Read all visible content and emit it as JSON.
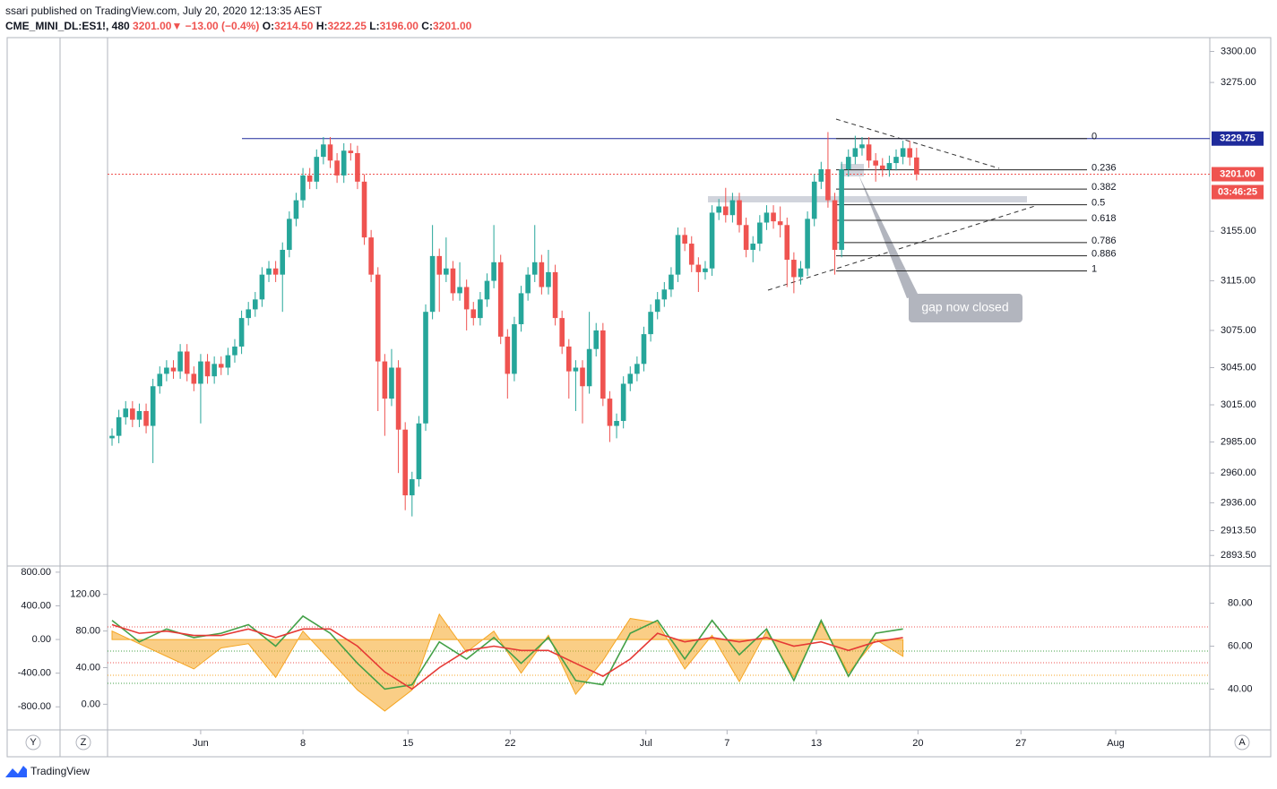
{
  "header": {
    "published": "ssari published on TradingView.com, July 20, 2020 12:13:35 AEST",
    "symbol": "CME_MINI_DL:ES1!, 480",
    "last": "3201.00",
    "arrow": "▼",
    "change": "−13.00 (−0.4%)",
    "o_label": "O:",
    "o_value": "3214.50",
    "h_label": "H:",
    "h_value": "3222.25",
    "l_label": "L:",
    "l_value": "3196.00",
    "c_label": "C:",
    "c_value": "3201.00"
  },
  "chart_data": [
    {
      "type": "candlestick",
      "up_color": "#26a69a",
      "down_color": "#ef5350",
      "xlim": [
        -0.66,
        161
      ],
      "ylim": [
        2885,
        3309
      ],
      "xticks": [
        {
          "value": 13,
          "label": "Jun"
        },
        {
          "value": 28,
          "label": "8"
        },
        {
          "value": 43.4,
          "label": "15"
        },
        {
          "value": 58.4,
          "label": "22"
        },
        {
          "value": 78.3,
          "label": "Jul"
        },
        {
          "value": 90.2,
          "label": "7"
        },
        {
          "value": 103.3,
          "label": "13"
        },
        {
          "value": 118.2,
          "label": "20"
        },
        {
          "value": 133.3,
          "label": "27"
        },
        {
          "value": 147.2,
          "label": "Aug"
        }
      ],
      "yticks": [
        {
          "value": 3300,
          "label": "3300.00"
        },
        {
          "value": 3275,
          "label": "3275.00"
        },
        {
          "value": 3155,
          "label": "3155.00"
        },
        {
          "value": 3115,
          "label": "3115.00"
        },
        {
          "value": 3075,
          "label": "3075.00"
        },
        {
          "value": 3045,
          "label": "3045.00"
        },
        {
          "value": 3015,
          "label": "3015.00"
        },
        {
          "value": 2985,
          "label": "2985.00"
        },
        {
          "value": 2960,
          "label": "2960.00"
        },
        {
          "value": 2936,
          "label": "2936.00"
        },
        {
          "value": 2913.5,
          "label": "2913.50"
        },
        {
          "value": 2893.5,
          "label": "2893.50"
        }
      ],
      "open": [
        2988,
        2990,
        3005,
        3012,
        3003,
        3010,
        2998,
        3030,
        3040,
        3045,
        3042,
        3058,
        3040,
        3032,
        3050,
        3038,
        3048,
        3045,
        3055,
        3062,
        3085,
        3092,
        3100,
        3120,
        3125,
        3120,
        3140,
        3165,
        3180,
        3200,
        3195,
        3215,
        3225,
        3212,
        3200,
        3220,
        3218,
        3195,
        3150,
        3120,
        3050,
        3020,
        3045,
        2995,
        2942,
        2955,
        3000,
        3090,
        3135,
        3120,
        3125,
        3105,
        3110,
        3092,
        3085,
        3100,
        3115,
        3130,
        3070,
        3040,
        3080,
        3105,
        3120,
        3130,
        3110,
        3122,
        3085,
        3062,
        3042,
        3045,
        3030,
        3060,
        3075,
        3020,
        2998,
        3002,
        3032,
        3040,
        3048,
        3072,
        3090,
        3100,
        3108,
        3120,
        3152,
        3145,
        3128,
        3122,
        3125,
        3170,
        3175,
        3168,
        3180,
        3160,
        3140,
        3145,
        3162,
        3170,
        3163,
        3160,
        3132,
        3118,
        3125,
        3165,
        3195,
        3205,
        3180,
        3140,
        3205,
        3215,
        3222,
        3225,
        3212,
        3208,
        3205,
        3210,
        3215,
        3222,
        3214.5
      ],
      "high": [
        2996,
        3011,
        3018,
        3018,
        3016,
        3016,
        3036,
        3046,
        3051,
        3051,
        3064,
        3064,
        3046,
        3056,
        3056,
        3054,
        3054,
        3061,
        3068,
        3091,
        3098,
        3106,
        3126,
        3131,
        3131,
        3146,
        3171,
        3186,
        3206,
        3206,
        3221,
        3231,
        3231,
        3218,
        3226,
        3226,
        3224,
        3201,
        3156,
        3126,
        3056,
        3060,
        3051,
        3001,
        2961,
        3006,
        3096,
        3160,
        3141,
        3150,
        3131,
        3130,
        3116,
        3098,
        3106,
        3121,
        3160,
        3136,
        3076,
        3086,
        3111,
        3126,
        3160,
        3136,
        3140,
        3128,
        3091,
        3068,
        3051,
        3051,
        3090,
        3081,
        3081,
        3026,
        3008,
        3038,
        3046,
        3054,
        3078,
        3096,
        3106,
        3114,
        3126,
        3158,
        3158,
        3151,
        3134,
        3131,
        3176,
        3181,
        3190,
        3186,
        3186,
        3166,
        3151,
        3168,
        3176,
        3176,
        3175,
        3166,
        3138,
        3131,
        3171,
        3201,
        3211,
        3235,
        3186,
        3211,
        3221,
        3232,
        3231,
        3231,
        3218,
        3214,
        3216,
        3221,
        3228,
        3228,
        3222.25
      ],
      "low": [
        2982,
        2984,
        2999,
        2997,
        2997,
        2992,
        2968,
        3024,
        3034,
        3036,
        3036,
        3034,
        3026,
        3000,
        3032,
        3032,
        3039,
        3039,
        3049,
        3056,
        3079,
        3086,
        3094,
        3114,
        3114,
        3090,
        3134,
        3159,
        3174,
        3189,
        3189,
        3209,
        3206,
        3194,
        3194,
        3212,
        3189,
        3144,
        3114,
        3010,
        2990,
        3014,
        2960,
        2930,
        2925,
        2949,
        2994,
        3084,
        3090,
        3114,
        3099,
        3099,
        3075,
        3079,
        3079,
        3094,
        3109,
        3064,
        3020,
        3034,
        3074,
        3099,
        3114,
        3104,
        3104,
        3079,
        3056,
        3020,
        3010,
        3000,
        3024,
        3054,
        3014,
        2985,
        2988,
        2996,
        3026,
        3034,
        3042,
        3066,
        3084,
        3094,
        3102,
        3114,
        3139,
        3122,
        3106,
        3116,
        3119,
        3164,
        3162,
        3162,
        3154,
        3134,
        3130,
        3139,
        3156,
        3157,
        3150,
        3110,
        3105,
        3112,
        3119,
        3159,
        3189,
        3174,
        3120,
        3134,
        3199,
        3209,
        3216,
        3206,
        3195,
        3199,
        3199,
        3204,
        3209,
        3208,
        3196
      ],
      "close": [
        2990,
        3005,
        3012,
        3003,
        3010,
        2998,
        3030,
        3040,
        3045,
        3042,
        3058,
        3040,
        3032,
        3050,
        3038,
        3048,
        3045,
        3055,
        3062,
        3085,
        3092,
        3100,
        3120,
        3125,
        3120,
        3140,
        3165,
        3180,
        3200,
        3195,
        3215,
        3225,
        3212,
        3200,
        3220,
        3218,
        3195,
        3150,
        3120,
        3050,
        3020,
        3045,
        2995,
        2942,
        2955,
        3000,
        3090,
        3135,
        3120,
        3125,
        3105,
        3110,
        3092,
        3085,
        3100,
        3115,
        3130,
        3070,
        3040,
        3080,
        3105,
        3120,
        3130,
        3110,
        3122,
        3085,
        3062,
        3042,
        3045,
        3030,
        3060,
        3075,
        3020,
        2998,
        3002,
        3032,
        3040,
        3048,
        3072,
        3090,
        3100,
        3108,
        3120,
        3152,
        3145,
        3128,
        3122,
        3125,
        3170,
        3175,
        3168,
        3180,
        3160,
        3140,
        3145,
        3162,
        3170,
        3163,
        3160,
        3132,
        3118,
        3125,
        3165,
        3195,
        3205,
        3180,
        3140,
        3205,
        3215,
        3222,
        3225,
        3212,
        3208,
        3205,
        3210,
        3215,
        3222,
        3214.5,
        3201
      ],
      "hlines": [
        {
          "value": 3229.75,
          "label": "3229.75",
          "color": "#1e2a9b"
        },
        {
          "value": 3201,
          "label": "3201.00",
          "color": "#ef5350"
        }
      ],
      "countdown": "03:46:25",
      "fib": {
        "start": 3229.75,
        "end": 3123,
        "levels": [
          0,
          0.236,
          0.382,
          0.5,
          0.618,
          0.786,
          0.886,
          1
        ]
      },
      "annotation": "gap now closed"
    },
    {
      "type": "oscillator",
      "x": [
        0,
        4,
        8,
        12,
        16,
        20,
        24,
        28,
        32,
        36,
        40,
        44,
        48,
        52,
        56,
        60,
        64,
        68,
        72,
        76,
        80,
        84,
        88,
        92,
        96,
        100,
        104,
        108,
        112,
        116
      ],
      "ylim": [
        -1074,
        852
      ],
      "yticks": [
        {
          "value": 800,
          "label": "800.00"
        },
        {
          "value": 400,
          "label": "400.00"
        },
        {
          "value": 0,
          "label": "0.00"
        },
        {
          "value": -400,
          "label": "-400.00"
        },
        {
          "value": -800,
          "label": "-800.00"
        }
      ],
      "y3lim": [
        -28,
        149
      ],
      "y3ticks": [
        {
          "value": 120,
          "label": "120.00"
        },
        {
          "value": 80,
          "label": "80.00"
        },
        {
          "value": 40,
          "label": "40.00"
        },
        {
          "value": 0,
          "label": "0.00"
        }
      ],
      "y2lim": [
        21,
        96.5
      ],
      "y2ticks": [
        {
          "value": 80,
          "label": "80.00"
        },
        {
          "value": 60,
          "label": "60.00"
        },
        {
          "value": 40,
          "label": "40.00"
        }
      ],
      "series": [
        {
          "color": "#f5a623",
          "fill": true,
          "values": [
            100,
            -50,
            -200,
            -350,
            -100,
            -50,
            -450,
            100,
            -250,
            -600,
            -850,
            -600,
            300,
            -150,
            100,
            -400,
            50,
            -650,
            -250,
            250,
            200,
            -350,
            50,
            -500,
            100,
            -450,
            200,
            -400,
            0,
            -200
          ]
        },
        {
          "color": "#43a047",
          "axis": "y2",
          "values": [
            72,
            62,
            68,
            64,
            66,
            70,
            60,
            74,
            66,
            52,
            40,
            42,
            62,
            54,
            64,
            52,
            64,
            44,
            42,
            66,
            72,
            54,
            72,
            56,
            68,
            44,
            72,
            46,
            66,
            68
          ]
        },
        {
          "color": "#e53935",
          "axis": "y2",
          "values": [
            70,
            66,
            67,
            65,
            65,
            68,
            64,
            68,
            68,
            60,
            48,
            40,
            50,
            58,
            60,
            58,
            58,
            52,
            46,
            54,
            66,
            62,
            64,
            62,
            64,
            60,
            62,
            58,
            62,
            64
          ]
        }
      ]
    }
  ],
  "axis_buttons": {
    "left1": "Y",
    "left2": "Z",
    "right": "A"
  },
  "brand": "TradingView"
}
